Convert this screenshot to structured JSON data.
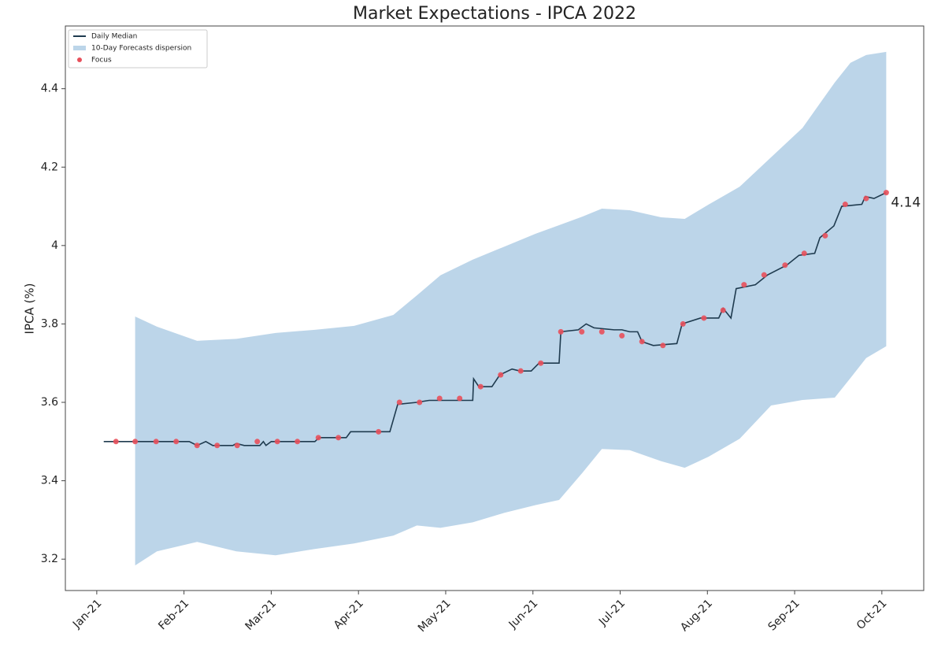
{
  "chart_data": {
    "type": "line",
    "title": "Market Expectations - IPCA 2022",
    "y_label": "IPCA (%)",
    "xlim": [
      -0.36,
      9.48
    ],
    "xticks": [
      {
        "value": 0,
        "label": "Jan-21"
      },
      {
        "value": 1,
        "label": "Feb-21"
      },
      {
        "value": 2,
        "label": "Mar-21"
      },
      {
        "value": 3,
        "label": "Apr-21"
      },
      {
        "value": 4,
        "label": "May-21"
      },
      {
        "value": 5,
        "label": "Jun-21"
      },
      {
        "value": 6,
        "label": "Jul-21"
      },
      {
        "value": 7,
        "label": "Aug-21"
      },
      {
        "value": 8,
        "label": "Sep-21"
      },
      {
        "value": 9,
        "label": "Oct-21"
      }
    ],
    "ylim": [
      3.12,
      4.56
    ],
    "yticks": [
      3.2,
      3.4,
      3.6,
      3.8,
      4.0,
      4.2,
      4.4
    ],
    "legend": "upper left",
    "series": [
      {
        "name": "Daily Median",
        "kind": "line",
        "color": "#1f3b4f",
        "x": [
          0.08,
          1.06,
          1.15,
          1.25,
          1.33,
          1.56,
          1.6,
          1.69,
          1.87,
          1.91,
          1.94,
          2.0,
          2.5,
          2.55,
          2.86,
          2.91,
          3.36,
          3.45,
          3.67,
          3.81,
          4.31,
          4.32,
          4.38,
          4.53,
          4.62,
          4.76,
          4.85,
          4.98,
          5.07,
          5.3,
          5.32,
          5.52,
          5.61,
          5.7,
          5.93,
          6.02,
          6.11,
          6.2,
          6.25,
          6.38,
          6.65,
          6.71,
          6.92,
          7.13,
          7.18,
          7.27,
          7.33,
          7.55,
          7.69,
          7.91,
          8.05,
          8.23,
          8.29,
          8.45,
          8.54,
          8.77,
          8.81,
          8.91,
          9.05
        ],
        "values": [
          3.5,
          3.5,
          3.49,
          3.5,
          3.49,
          3.49,
          3.495,
          3.49,
          3.49,
          3.5,
          3.49,
          3.5,
          3.5,
          3.51,
          3.51,
          3.525,
          3.525,
          3.595,
          3.6,
          3.605,
          3.605,
          3.66,
          3.64,
          3.64,
          3.67,
          3.685,
          3.68,
          3.68,
          3.7,
          3.7,
          3.78,
          3.785,
          3.8,
          3.79,
          3.785,
          3.785,
          3.78,
          3.78,
          3.755,
          3.745,
          3.75,
          3.8,
          3.815,
          3.815,
          3.84,
          3.815,
          3.89,
          3.9,
          3.925,
          3.95,
          3.975,
          3.98,
          4.02,
          4.05,
          4.1,
          4.105,
          4.125,
          4.12,
          4.135
        ]
      },
      {
        "name": "10-Day Forecasts dispersion",
        "kind": "band",
        "color": "#bcd5e9",
        "x": [
          0.44,
          0.69,
          1.15,
          1.6,
          2.05,
          2.5,
          2.95,
          3.4,
          3.67,
          3.94,
          4.31,
          4.67,
          5.03,
          5.3,
          5.57,
          5.79,
          6.11,
          6.47,
          6.74,
          7.01,
          7.37,
          7.73,
          8.09,
          8.46,
          8.64,
          8.82,
          9.05
        ],
        "upper": [
          3.819,
          3.793,
          3.757,
          3.762,
          3.777,
          3.785,
          3.795,
          3.823,
          3.873,
          3.924,
          3.964,
          3.997,
          4.03,
          4.052,
          4.074,
          4.094,
          4.09,
          4.072,
          4.068,
          4.104,
          4.15,
          4.225,
          4.3,
          4.416,
          4.466,
          4.486,
          4.494
        ],
        "lower": [
          3.184,
          3.22,
          3.244,
          3.22,
          3.21,
          3.226,
          3.24,
          3.26,
          3.286,
          3.28,
          3.294,
          3.318,
          3.338,
          3.351,
          3.421,
          3.481,
          3.478,
          3.45,
          3.433,
          3.461,
          3.507,
          3.592,
          3.606,
          3.612,
          3.662,
          3.713,
          3.743
        ]
      },
      {
        "name": "Focus",
        "kind": "scatter",
        "color": "#e8505b",
        "x": [
          0.22,
          0.44,
          0.68,
          0.91,
          1.15,
          1.38,
          1.61,
          1.84,
          2.07,
          2.3,
          2.54,
          2.77,
          3.23,
          3.47,
          3.7,
          3.93,
          4.16,
          4.4,
          4.63,
          4.86,
          5.09,
          5.32,
          5.56,
          5.79,
          6.02,
          6.25,
          6.49,
          6.72,
          6.96,
          7.18,
          7.42,
          7.65,
          7.89,
          8.11,
          8.35,
          8.58,
          8.82,
          9.05
        ],
        "values": [
          3.5,
          3.5,
          3.5,
          3.5,
          3.49,
          3.49,
          3.49,
          3.5,
          3.5,
          3.5,
          3.51,
          3.51,
          3.525,
          3.6,
          3.6,
          3.61,
          3.61,
          3.64,
          3.67,
          3.68,
          3.7,
          3.78,
          3.78,
          3.78,
          3.77,
          3.755,
          3.745,
          3.8,
          3.815,
          3.835,
          3.9,
          3.925,
          3.95,
          3.98,
          4.025,
          4.105,
          4.12,
          4.135
        ]
      }
    ],
    "annotation": {
      "text": "4.14",
      "color": "#e8606a"
    }
  }
}
